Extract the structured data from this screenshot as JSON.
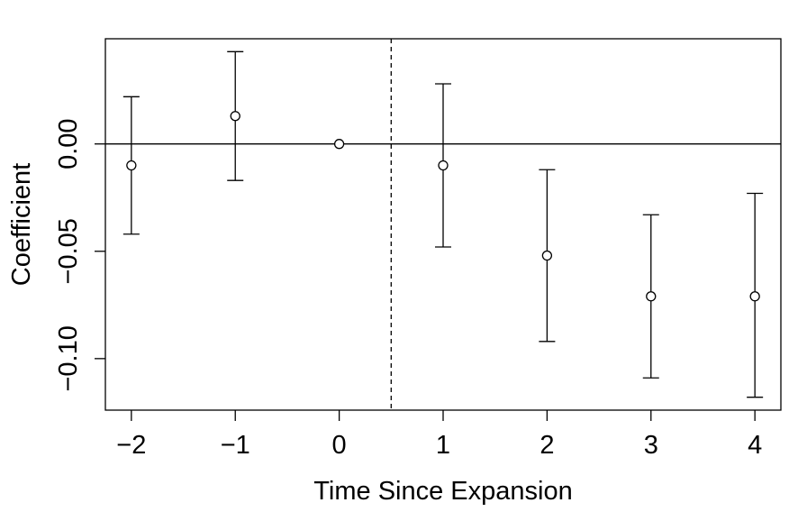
{
  "chart_data": {
    "type": "scatter",
    "xlabel": "Time Since Expansion",
    "ylabel": "Coefficient",
    "xlim": [
      -2.25,
      4.25
    ],
    "ylim": [
      -0.124,
      0.049
    ],
    "x_ticks": [
      -2,
      -1,
      0,
      1,
      2,
      3,
      4
    ],
    "x_tick_labels": [
      "−2",
      "−1",
      "0",
      "1",
      "2",
      "3",
      "4"
    ],
    "y_ticks": [
      0.0,
      -0.05,
      -0.1
    ],
    "y_tick_labels": [
      "0.00",
      "−0.05",
      "−0.10"
    ],
    "reference_hline": 0,
    "reference_vline": 0.5,
    "grid": false,
    "points": [
      {
        "x": -2,
        "y": -0.01,
        "lower": -0.042,
        "upper": 0.022
      },
      {
        "x": -1,
        "y": 0.013,
        "lower": -0.017,
        "upper": 0.043
      },
      {
        "x": 0,
        "y": 0.0,
        "lower": 0.0,
        "upper": 0.0
      },
      {
        "x": 1,
        "y": -0.01,
        "lower": -0.048,
        "upper": 0.028
      },
      {
        "x": 2,
        "y": -0.052,
        "lower": -0.092,
        "upper": -0.012
      },
      {
        "x": 3,
        "y": -0.071,
        "lower": -0.109,
        "upper": -0.033
      },
      {
        "x": 4,
        "y": -0.071,
        "lower": -0.118,
        "upper": -0.023
      }
    ]
  }
}
